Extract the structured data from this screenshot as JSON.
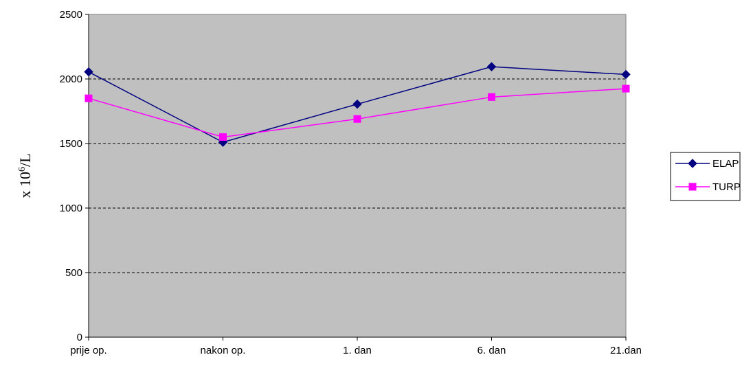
{
  "chart_data": {
    "type": "line",
    "categories": [
      "prije op.",
      "nakon op.",
      "1. dan",
      "6. dan",
      "21.dan"
    ],
    "series": [
      {
        "name": "ELAP",
        "values": [
          2055,
          1510,
          1805,
          2095,
          2035
        ],
        "color": "#000080",
        "marker": "diamond"
      },
      {
        "name": "TURP",
        "values": [
          1850,
          1550,
          1690,
          1860,
          1925
        ],
        "color": "#ff00ff",
        "marker": "square"
      }
    ],
    "title": "",
    "xlabel": "",
    "ylabel_prefix": "x 10",
    "ylabel_superscript": "6",
    "ylabel_suffix": "/L",
    "ylim": [
      0,
      2500
    ],
    "yticks": [
      "0",
      "500",
      "1000",
      "1500",
      "2000",
      "2500"
    ],
    "grid": "horizontal dashed",
    "legend_position": "right",
    "plot_background": "#c0c0c0"
  }
}
